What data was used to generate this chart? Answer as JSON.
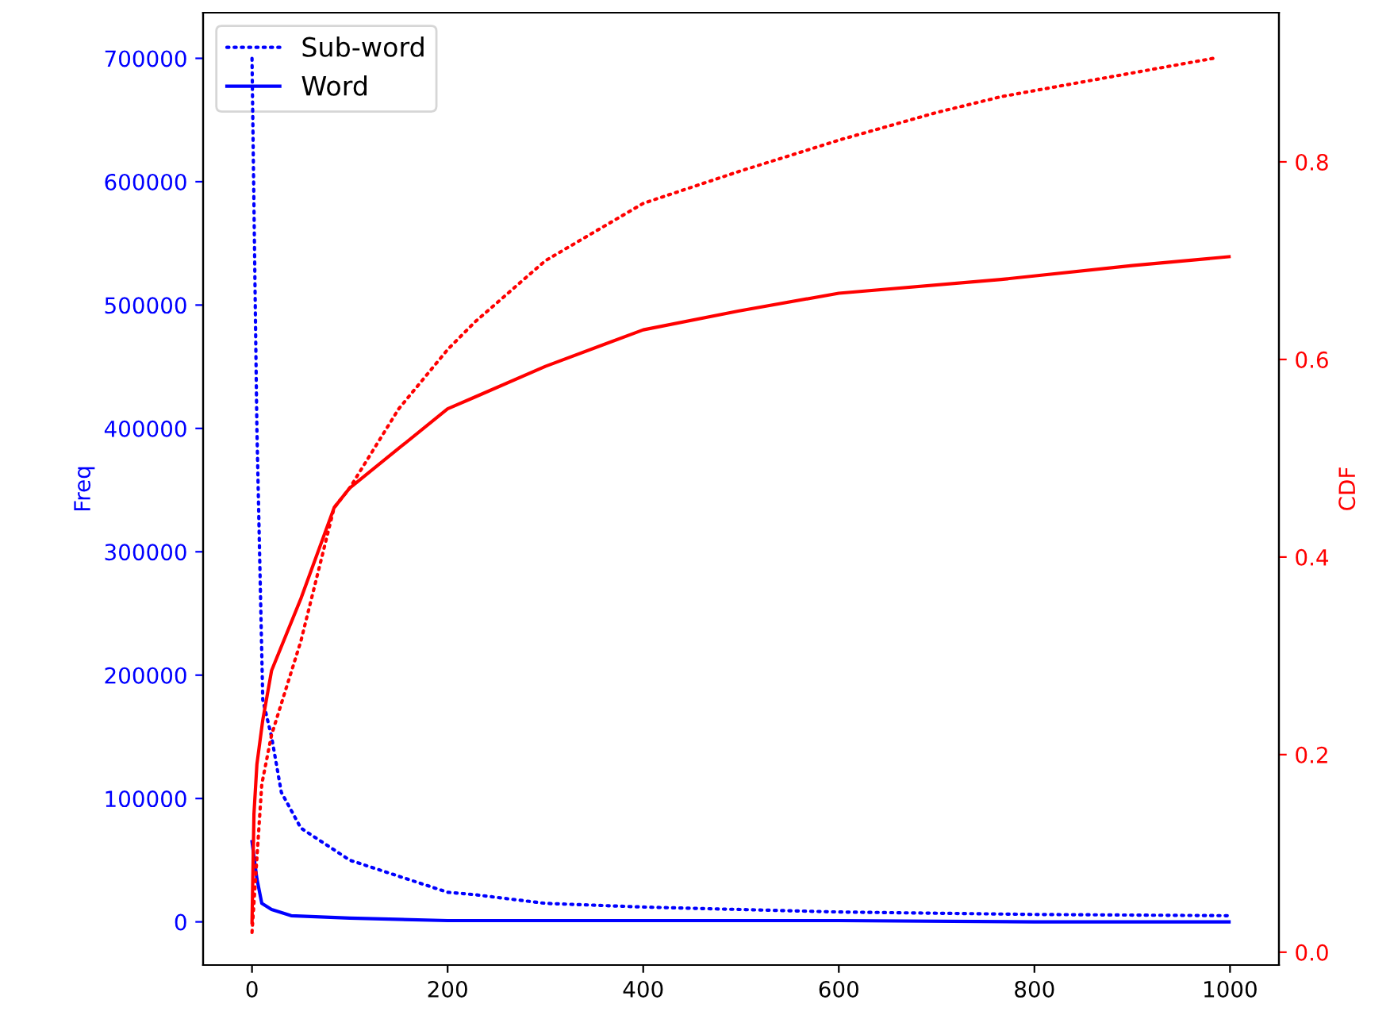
{
  "chart_data": {
    "type": "line",
    "ylabel": "Freq",
    "y2label": "CDF",
    "legend": "top left",
    "xlim": [
      -50,
      1050
    ],
    "xticks": [
      0,
      200,
      400,
      600,
      800,
      1000
    ],
    "ylim": [
      -35000,
      737000
    ],
    "yticks": [
      0,
      100000,
      200000,
      300000,
      400000,
      500000,
      600000,
      700000
    ],
    "y2lim": [
      -0.013,
      0.951
    ],
    "y2ticks": [
      {
        "value": 0,
        "label": "0.0"
      },
      0.2,
      0.4,
      0.6,
      0.8
    ],
    "series": [
      {
        "name": "Sub-word",
        "color": "#0000ff",
        "line_style": "dotted",
        "x": [
          0,
          5,
          11,
          20,
          30,
          50,
          100,
          200,
          228,
          300,
          400,
          600,
          800,
          999
        ],
        "values": [
          700000,
          400000,
          180000,
          150000,
          105000,
          76000,
          50000,
          24000,
          22000,
          15000,
          12000,
          8000,
          6000,
          5000
        ]
      },
      {
        "name": "Word",
        "color": "#0000ff",
        "line_style": "solid",
        "x": [
          0,
          5,
          10,
          20,
          40,
          100,
          200,
          400,
          600,
          800,
          999
        ],
        "values": [
          65000,
          35000,
          15000,
          10000,
          5000,
          3000,
          1000,
          1000,
          1000,
          0,
          0
        ]
      },
      {
        "color": "#ff0000",
        "line_style": "dotted",
        "axis": "y2",
        "x": [
          0,
          10,
          20,
          50,
          84,
          100,
          150,
          200,
          228,
          300,
          400,
          497,
          600,
          700,
          766,
          900,
          984
        ],
        "values": [
          0.02,
          0.17,
          0.22,
          0.315,
          0.45,
          0.47,
          0.55,
          0.61,
          0.638,
          0.7,
          0.758,
          0.79,
          0.822,
          0.85,
          0.866,
          0.89,
          0.905
        ]
      },
      {
        "color": "#ff0000",
        "line_style": "solid",
        "axis": "y2",
        "x": [
          0,
          2,
          5,
          11,
          20,
          50,
          84,
          100,
          150,
          200,
          228,
          300,
          400,
          497,
          600,
          766,
          900,
          999
        ],
        "values": [
          0.03,
          0.14,
          0.19,
          0.235,
          0.285,
          0.358,
          0.45,
          0.47,
          0.51,
          0.55,
          0.562,
          0.593,
          0.63,
          0.649,
          0.667,
          0.681,
          0.695,
          0.704
        ]
      }
    ]
  }
}
